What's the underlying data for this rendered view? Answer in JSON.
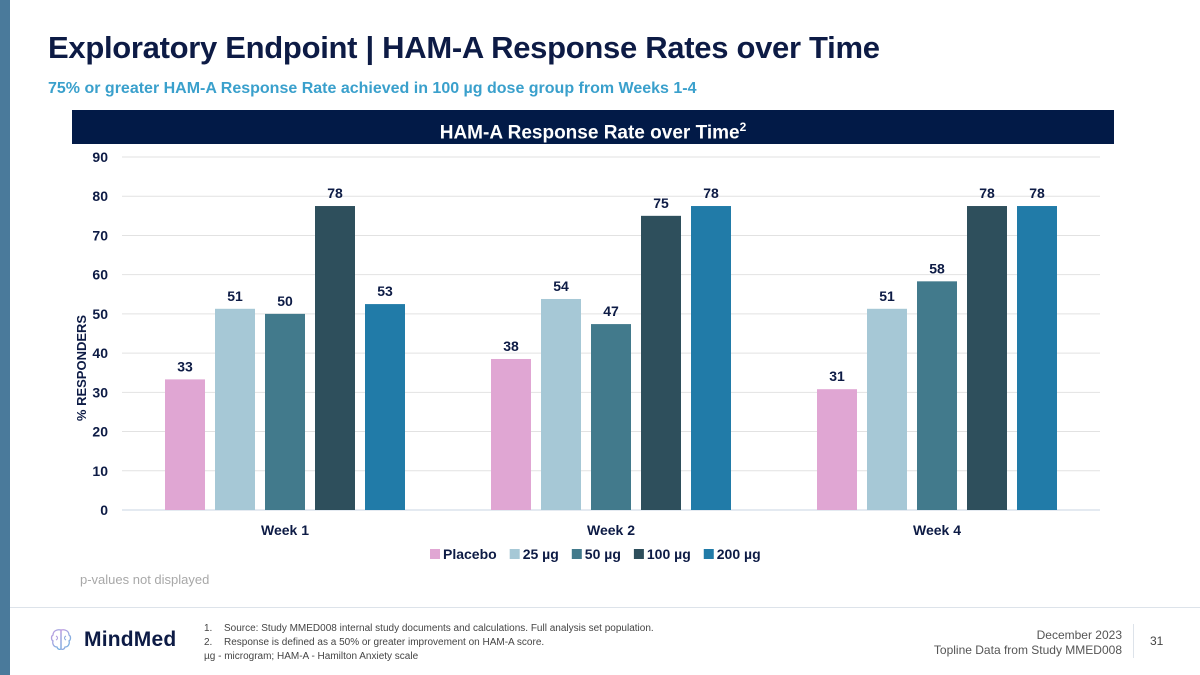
{
  "slide": {
    "title": "Exploratory Endpoint | HAM-A Response Rates over Time",
    "subtitle": "75% or greater HAM-A Response Rate achieved in 100 µg dose group from Weeks 1-4",
    "chart_header": "HAM-A Response Rate over Time",
    "chart_header_sup": "2",
    "p_note": "p-values not displayed",
    "brand": "MindMed",
    "footnotes": [
      {
        "num": "1.",
        "text": "Source: Study MMED008 internal study documents and calculations. Full analysis set population."
      },
      {
        "num": "2.",
        "text": "Response is defined as a 50% or greater improvement on HAM-A score."
      }
    ],
    "abbreviations": "µg - microgram; HAM-A - Hamilton Anxiety scale",
    "date": "December 2023",
    "report": "Topline Data from Study MMED008",
    "page_number": "31",
    "colors": {
      "title": "#0d1b45",
      "subtitle": "#3aa0cc",
      "header_bg": "#021a47",
      "accent_bar": "#4a7a9b"
    }
  },
  "chart_data": {
    "type": "bar",
    "title": "HAM-A Response Rate over Time",
    "xlabel": "",
    "ylabel": "% RESPONDERS",
    "ylim": [
      0,
      90
    ],
    "yticks": [
      0,
      10,
      20,
      30,
      40,
      50,
      60,
      70,
      80,
      90
    ],
    "grid": true,
    "legend_position": "bottom",
    "categories": [
      "Week 1",
      "Week 2",
      "Week 4"
    ],
    "series": [
      {
        "name": "Placebo",
        "color": "#e0a6d3",
        "values": [
          33.3,
          38.5,
          30.8
        ],
        "labels": [
          "33",
          "38",
          "31"
        ]
      },
      {
        "name": "25 µg",
        "color": "#a6c8d6",
        "values": [
          51.3,
          53.8,
          51.3
        ],
        "labels": [
          "51",
          "54",
          "51"
        ]
      },
      {
        "name": "50 µg",
        "color": "#427a8c",
        "values": [
          50.0,
          47.4,
          58.3
        ],
        "labels": [
          "50",
          "47",
          "58"
        ]
      },
      {
        "name": "100 µg",
        "color": "#2e4f5c",
        "values": [
          77.5,
          75.0,
          77.5
        ],
        "labels": [
          "78",
          "75",
          "78"
        ]
      },
      {
        "name": "200 µg",
        "color": "#217ba8",
        "values": [
          52.5,
          77.5,
          77.5
        ],
        "labels": [
          "53",
          "78",
          "78"
        ]
      }
    ]
  }
}
